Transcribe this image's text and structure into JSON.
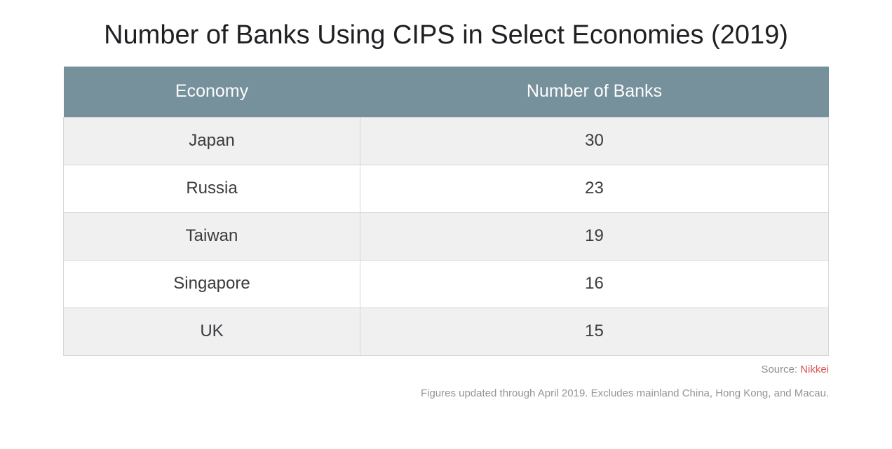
{
  "title": "Number of Banks Using CIPS in Select Economies (2019)",
  "table": {
    "columns": [
      "Economy",
      "Number of Banks"
    ],
    "rows": [
      {
        "economy": "Japan",
        "banks": "30"
      },
      {
        "economy": "Russia",
        "banks": "23"
      },
      {
        "economy": "Taiwan",
        "banks": "19"
      },
      {
        "economy": "Singapore",
        "banks": "16"
      },
      {
        "economy": "UK",
        "banks": "15"
      }
    ]
  },
  "footer": {
    "source_label": "Source:",
    "source_link": "Nikkei",
    "note": "Figures updated through April 2019. Excludes mainland China, Hong Kong, and Macau."
  },
  "colors": {
    "header_bg": "#76909c",
    "header_text": "#fdfdfd",
    "row_alt_bg": "#f0f0f1",
    "row_bg": "#ffffff",
    "border": "#d7d7d7",
    "title_text": "#1f2023",
    "cell_text": "#3a3b3f",
    "footer_text": "#8f8f8f",
    "source_link_red": "#d9534f"
  },
  "chart_data": {
    "type": "table",
    "title": "Number of Banks Using CIPS in Select Economies (2019)",
    "columns": [
      "Economy",
      "Number of Banks"
    ],
    "rows": [
      [
        "Japan",
        30
      ],
      [
        "Russia",
        23
      ],
      [
        "Taiwan",
        19
      ],
      [
        "Singapore",
        16
      ],
      [
        "UK",
        15
      ]
    ],
    "source": "Nikkei",
    "note": "Figures updated through April 2019. Excludes mainland China, Hong Kong, and Macau."
  }
}
